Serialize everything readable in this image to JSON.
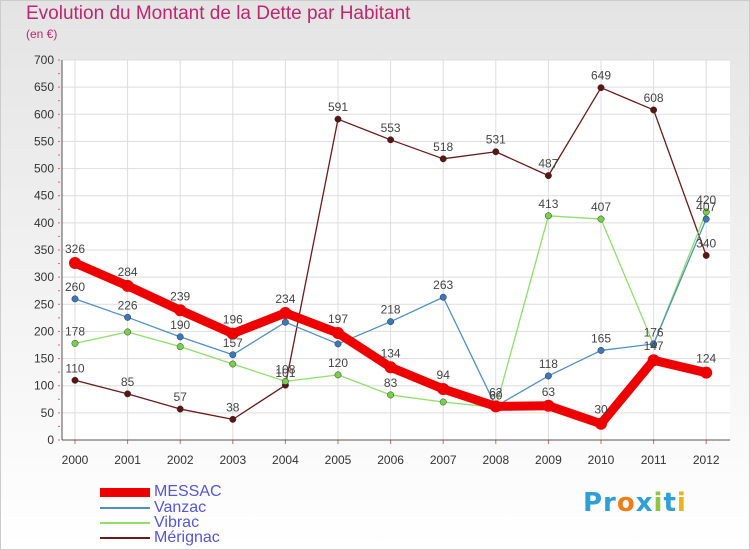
{
  "header": {
    "title": "Evolution du Montant de la Dette par Habitant",
    "subtitle": "(en €)"
  },
  "logo": {
    "parts": [
      {
        "text": "Pr",
        "color": "#2f9fd8"
      },
      {
        "text": "o",
        "color": "#ee7d1a"
      },
      {
        "text": "x",
        "color": "#2f9fd8"
      },
      {
        "text": "i",
        "color": "#8dc63f"
      },
      {
        "text": "t",
        "color": "#2f9fd8"
      },
      {
        "text": "i",
        "color": "#e8b516"
      }
    ]
  },
  "chart_data": {
    "type": "line",
    "title": "Evolution du Montant de la Dette par Habitant",
    "subtitle": "(en €)",
    "x": [
      "2000",
      "2001",
      "2002",
      "2003",
      "2004",
      "2005",
      "2006",
      "2007",
      "2008",
      "2009",
      "2010",
      "2011",
      "2012"
    ],
    "ylim": [
      0,
      700
    ],
    "yticks": [
      0,
      50,
      100,
      150,
      200,
      250,
      300,
      350,
      400,
      450,
      500,
      550,
      600,
      650,
      700
    ],
    "grid": true,
    "legend_position": "bottom-left",
    "series": [
      {
        "name": "Mérignac",
        "color": "#6b1a1a",
        "values": [
          110,
          85,
          57,
          38,
          101,
          591,
          553,
          518,
          531,
          487,
          649,
          608,
          340
        ]
      },
      {
        "name": "Vibrac",
        "color": "#8ee068",
        "values": [
          178,
          199,
          172,
          140,
          108,
          120,
          83,
          70,
          60,
          413,
          407,
          176,
          420
        ]
      },
      {
        "name": "Vanzac",
        "color": "#4f8fc8",
        "values": [
          260,
          226,
          190,
          157,
          217,
          177,
          218,
          263,
          62,
          118,
          165,
          177,
          407
        ]
      },
      {
        "name": "MESSAC",
        "color": "#ee0000",
        "values": [
          326,
          284,
          239,
          196,
          234,
          197,
          134,
          94,
          62,
          63,
          30,
          147,
          124
        ]
      }
    ]
  },
  "data_labels": {
    "Mérignac": [
      "110",
      "85",
      "57",
      "38",
      "101",
      "591",
      "553",
      "518",
      "531",
      "487",
      "649",
      "608",
      "340"
    ],
    "Vibrac": [
      "178",
      "",
      "",
      "",
      "108",
      "120",
      "83",
      "",
      "60",
      "413",
      "407",
      "176",
      "420"
    ],
    "Vanzac": [
      "260",
      "226",
      "190",
      "157",
      "",
      "",
      "218",
      "263",
      "",
      "118",
      "165",
      "",
      "407"
    ],
    "MESSAC": [
      "326",
      "284",
      "239",
      "196",
      "234",
      "197",
      "134",
      "94",
      "62",
      "63",
      "30",
      "147",
      "124"
    ]
  },
  "legend": {
    "items": [
      {
        "label": "MESSAC",
        "color": "#ee0000",
        "text_color": "#5555dd"
      },
      {
        "label": "Vanzac",
        "color": "#4f8fc8",
        "text_color": "#5555dd"
      },
      {
        "label": "Vibrac",
        "color": "#8ee068",
        "text_color": "#5555dd"
      },
      {
        "label": "Mérignac",
        "color": "#6b1a1a",
        "text_color": "#5555dd"
      }
    ]
  }
}
